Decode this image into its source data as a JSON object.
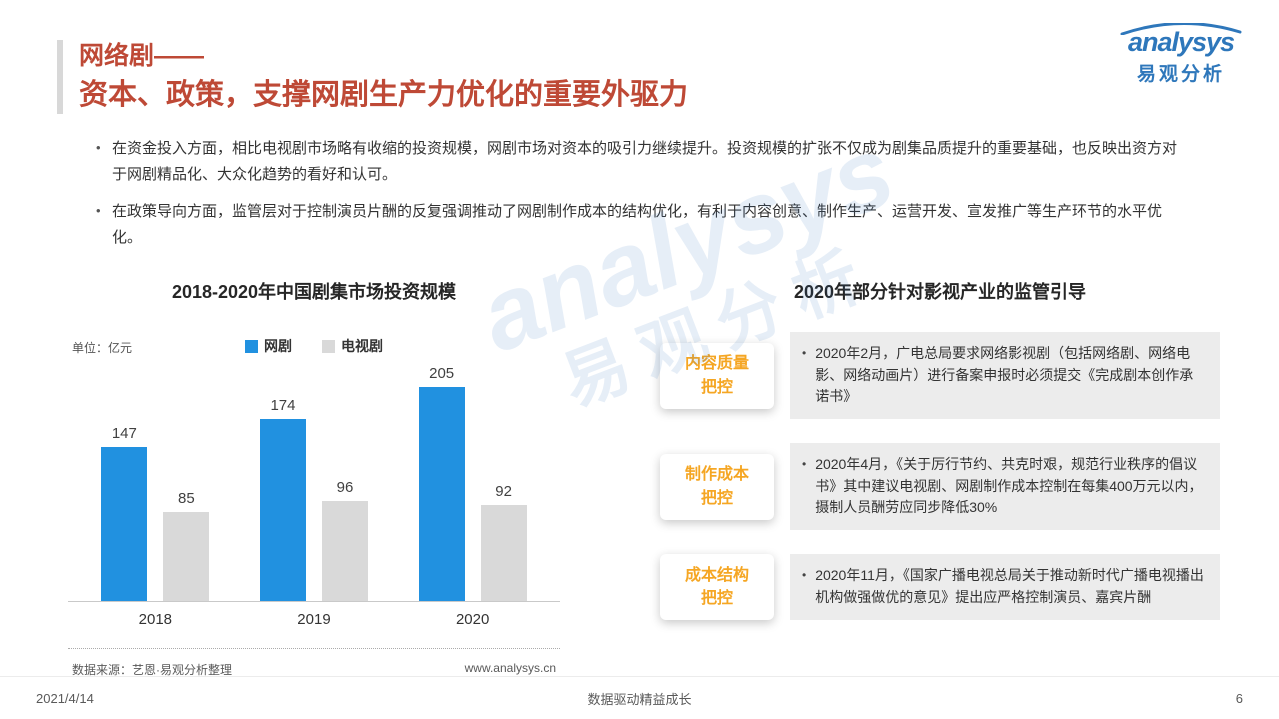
{
  "header": {
    "title_line1": "网络剧——",
    "title_line2": "资本、政策，支撑网剧生产力优化的重要外驱力"
  },
  "logo": {
    "brand": "analysys",
    "brand_cn": "易观分析"
  },
  "bullets": [
    "在资金投入方面，相比电视剧市场略有收缩的投资规模，网剧市场对资本的吸引力继续提升。投资规模的扩张不仅成为剧集品质提升的重要基础，也反映出资方对于网剧精品化、大众化趋势的看好和认可。",
    "在政策导向方面，监管层对于控制演员片酬的反复强调推动了网剧制作成本的结构优化，有利于内容创意、制作生产、运营开发、宣发推广等生产环节的水平优化。"
  ],
  "chart": {
    "title": "2018-2020年中国剧集市场投资规模",
    "unit": "单位：亿元",
    "source": "数据来源：艺恩·易观分析整理",
    "website": "www.analysys.cn"
  },
  "chart_data": {
    "type": "bar",
    "title": "2018-2020年中国剧集市场投资规模",
    "categories": [
      "2018",
      "2019",
      "2020"
    ],
    "series": [
      {
        "name": "网剧",
        "color": "#2191E0",
        "values": [
          147,
          174,
          205
        ]
      },
      {
        "name": "电视剧",
        "color": "#D9D9D9",
        "values": [
          85,
          96,
          92
        ]
      }
    ],
    "unit": "亿元",
    "ylim": [
      0,
      220
    ],
    "grid": false,
    "legend_position": "top"
  },
  "regulation": {
    "title": "2020年部分针对影视产业的监管引导",
    "items": [
      {
        "label_line1": "内容质量",
        "label_line2": "把控",
        "text": "2020年2月，广电总局要求网络影视剧（包括网络剧、网络电影、网络动画片）进行备案申报时必须提交《完成剧本创作承诺书》"
      },
      {
        "label_line1": "制作成本",
        "label_line2": "把控",
        "text": "2020年4月，《关于厉行节约、共克时艰，规范行业秩序的倡议书》其中建议电视剧、网剧制作成本控制在每集400万元以内，摄制人员酬劳应同步降低30%"
      },
      {
        "label_line1": "成本结构",
        "label_line2": "把控",
        "text": "2020年11月，《国家广播电视总局关于推动新时代广播电视播出机构做强做优的意见》提出应严格控制演员、嘉宾片酬"
      }
    ]
  },
  "watermark": {
    "line1": "analysys",
    "line2": "易观分析"
  },
  "footer": {
    "date": "2021/4/14",
    "slogan": "数据驱动精益成长",
    "page_number": "6"
  }
}
